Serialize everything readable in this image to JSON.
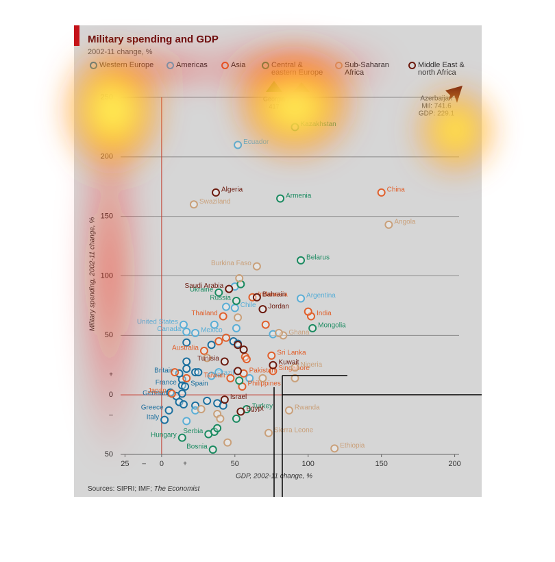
{
  "chart_data": {
    "type": "scatter",
    "title": "Military spending and GDP",
    "subtitle": "2002-11 change, %",
    "x_label": "GDP, 2002-11 change, %",
    "y_label": "Military spending, 2002-11 change, %",
    "source": "Sources: SIPRI; IMF;",
    "source_italic": "The Economist",
    "xlim": [
      -28,
      203
    ],
    "ylim": [
      -50,
      250
    ],
    "xticks": [
      {
        "value": -25,
        "label": "25"
      },
      0,
      50,
      100,
      150,
      200
    ],
    "yticks": [
      {
        "value": -50,
        "label": "50"
      },
      0,
      50,
      100,
      150,
      200,
      250
    ],
    "sign_marks": {
      "x_minus": "–",
      "x_plus": "+",
      "y_plus": "+",
      "y_minus": "–"
    },
    "grid": true,
    "annotations": [
      {
        "lines": [
          "Georgia",
          "417"
        ]
      },
      {
        "lines": [
          "Azerbaijan",
          "Mil: 741.6",
          "GDP: 229.1"
        ]
      }
    ],
    "series": [
      {
        "name": "Western Europe",
        "color": "#1b6f9e",
        "x": [
          12,
          14,
          16,
          10,
          5,
          2,
          17,
          17,
          17,
          23,
          25,
          14,
          6,
          14,
          12,
          15,
          23,
          31,
          38,
          42,
          34,
          49,
          52
        ],
        "values": [
          18,
          8,
          7,
          -1,
          -13,
          -21,
          44,
          28,
          22,
          19,
          19,
          13,
          2,
          1,
          -6,
          -8,
          -9,
          -5,
          -7,
          -9,
          42,
          45,
          43
        ],
        "labels": [
          "Britain",
          "France",
          "Spain",
          "Germany",
          "Greece",
          "Italy",
          null,
          null,
          null,
          null,
          null,
          null,
          null,
          null,
          null,
          null,
          null,
          null,
          null,
          null,
          null,
          null,
          null
        ]
      },
      {
        "name": "Americas",
        "color": "#5aaed6",
        "x": [
          50,
          95,
          15,
          17,
          23,
          34,
          52,
          36,
          51,
          76,
          50,
          44,
          39,
          60,
          23,
          17
        ],
        "values": [
          73,
          81,
          59,
          53,
          52,
          16,
          210,
          59,
          56,
          51,
          91,
          74,
          19,
          14,
          -13,
          -22
        ],
        "labels": [
          "Chile",
          "Argentina",
          "United States",
          "Canada",
          "Mexico",
          "Brazil",
          "Ecuador",
          null,
          null,
          null,
          null,
          null,
          null,
          null,
          null,
          null
        ]
      },
      {
        "name": "Asia",
        "color": "#e0602c",
        "x": [
          150,
          102,
          42,
          29,
          75,
          76,
          55,
          47,
          56,
          62,
          7,
          39,
          44,
          57,
          58,
          71,
          100,
          9,
          17
        ],
        "values": [
          170,
          66,
          66,
          37,
          33,
          20,
          7,
          14,
          18,
          82,
          1,
          45,
          48,
          32,
          30,
          59,
          70,
          19,
          14
        ],
        "labels": [
          "China",
          "India",
          "Thailand",
          "Australia",
          "Sri Lanka",
          "Singapore",
          "Philippines",
          "Taiwan",
          "Pakistan",
          "Indonesia",
          "Japan",
          null,
          null,
          null,
          null,
          null,
          null,
          null,
          null
        ]
      },
      {
        "name": "Central &\neastern Europe",
        "color": "#1a8a60",
        "x": [
          81,
          95,
          39,
          51,
          103,
          32,
          35,
          58,
          14,
          91,
          51,
          54,
          36,
          38,
          53
        ],
        "values": [
          165,
          113,
          86,
          79,
          56,
          -33,
          -46,
          -12,
          -36,
          225,
          -20,
          93,
          -31,
          -28,
          12
        ],
        "labels": [
          "Armenia",
          "Belarus",
          "Ukraine",
          "Russia",
          "Mongolia",
          "Serbia",
          "Bosnia",
          "Turkey",
          "Hungary",
          "Kazakhstan",
          null,
          null,
          null,
          null,
          null
        ]
      },
      {
        "name": "Sub-Saharan\nAfrica",
        "color": "#c9a07a",
        "x": [
          155,
          22,
          65,
          83,
          91,
          87,
          73,
          118,
          91,
          69,
          52,
          53,
          31,
          27,
          38,
          40,
          45,
          80
        ],
        "values": [
          143,
          160,
          108,
          50,
          23,
          -13,
          -32,
          -45,
          14,
          14,
          65,
          98,
          31,
          -12,
          -16,
          -20,
          -40,
          52
        ],
        "labels": [
          "Angola",
          "Swaziland",
          "Burkina Faso",
          "Ghana",
          "Nigeria",
          "Rwanda",
          "Sierra Leone",
          "Ethiopia",
          null,
          null,
          null,
          null,
          null,
          null,
          null,
          null,
          null,
          null
        ]
      },
      {
        "name": "Middle East &\nnorth Africa",
        "color": "#6b1a0e",
        "x": [
          37,
          46,
          65,
          69,
          43,
          76,
          43,
          54,
          52,
          56,
          52
        ],
        "values": [
          170,
          89,
          82,
          72,
          28,
          25,
          -4,
          -14,
          42,
          38,
          20
        ],
        "labels": [
          "Algeria",
          "Saudi Arabia",
          "Bahrain",
          "Jordan",
          "Tunisia",
          "Kuwait",
          "Israel",
          "Egypt",
          null,
          null,
          null
        ]
      }
    ]
  }
}
